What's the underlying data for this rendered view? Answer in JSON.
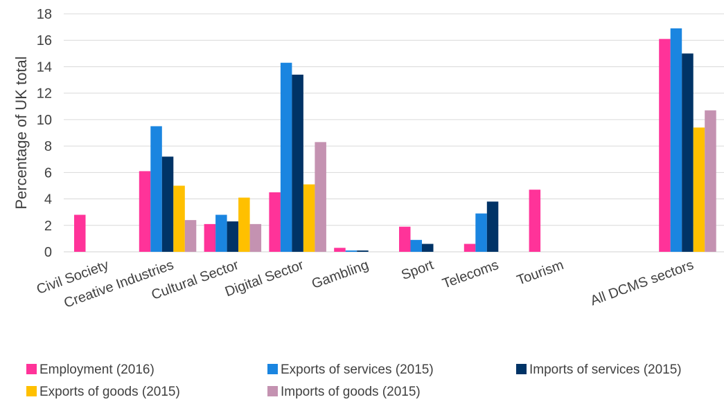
{
  "chart_data": {
    "type": "bar",
    "title": "",
    "xlabel": "",
    "ylabel": "Percentage of UK total",
    "ylim": [
      0,
      18
    ],
    "yticks": [
      0,
      2,
      4,
      6,
      8,
      10,
      12,
      14,
      16,
      18
    ],
    "grid": true,
    "legend_position": "bottom",
    "categories": [
      "Civil Society",
      "Creative Industries",
      "Cultural Sector",
      "Digital Sector",
      "Gambling",
      "Sport",
      "Telecoms",
      "Tourism",
      "",
      "All DCMS sectors"
    ],
    "series": [
      {
        "name": "Employment (2016)",
        "color": "#ff3399",
        "values": [
          2.8,
          6.1,
          2.1,
          4.5,
          0.3,
          1.9,
          0.6,
          4.7,
          null,
          16.1
        ]
      },
      {
        "name": "Exports of services (2015)",
        "color": "#1a85e0",
        "values": [
          null,
          9.5,
          2.8,
          14.3,
          0.1,
          0.9,
          2.9,
          null,
          null,
          16.9
        ]
      },
      {
        "name": "Imports of services (2015)",
        "color": "#003366",
        "values": [
          null,
          7.2,
          2.3,
          13.4,
          0.1,
          0.6,
          3.8,
          null,
          null,
          15.0
        ]
      },
      {
        "name": "Exports of goods (2015)",
        "color": "#ffc000",
        "values": [
          null,
          5.0,
          4.1,
          5.1,
          null,
          null,
          null,
          null,
          null,
          9.4
        ]
      },
      {
        "name": "Imports of goods (2015)",
        "color": "#c492b1",
        "values": [
          null,
          2.4,
          2.1,
          8.3,
          null,
          null,
          null,
          null,
          null,
          10.7
        ]
      }
    ]
  }
}
